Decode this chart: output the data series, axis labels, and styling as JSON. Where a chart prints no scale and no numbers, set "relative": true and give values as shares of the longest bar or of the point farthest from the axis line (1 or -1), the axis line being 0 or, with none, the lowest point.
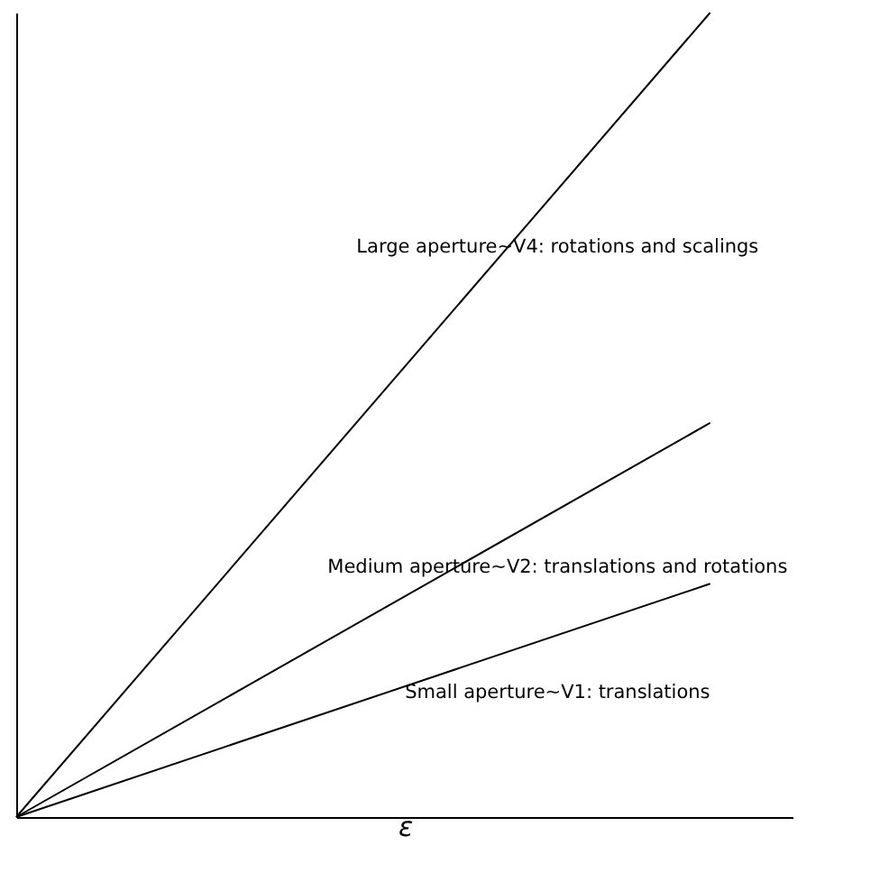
{
  "chart_data": {
    "type": "line",
    "relative": true,
    "xlabel": "ε",
    "categories": [
      null,
      null
    ],
    "grid": false,
    "marker": "none",
    "line_style": "solid",
    "series": [
      {
        "name": "Large aperture~V4: rotations and scalings",
        "color": "#000000",
        "values": [
          0,
          1
        ]
      },
      {
        "name": "Medium aperture~V2: translations and rotations",
        "color": "#000000",
        "values": [
          0,
          0.49
        ]
      },
      {
        "name": "Small aperture~V1: translations",
        "color": "#000000",
        "values": [
          0,
          0.29
        ]
      }
    ]
  }
}
